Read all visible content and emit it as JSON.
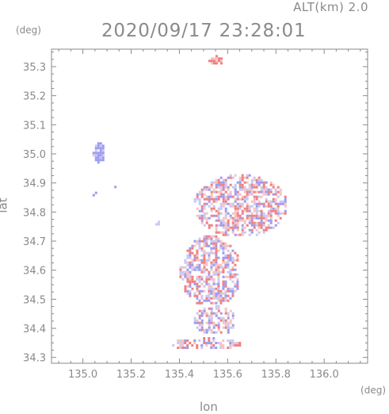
{
  "header": {
    "altitude_label": "ALT(km)  2.0",
    "timestamp": "2020/09/17 23:28:01"
  },
  "axes": {
    "x_label": "lon",
    "y_label": "lat",
    "x_unit": "(deg)",
    "y_unit": "(deg)"
  },
  "chart_data": {
    "type": "heatmap",
    "xlabel": "lon",
    "ylabel": "lat",
    "xlim": [
      134.87,
      136.18
    ],
    "ylim": [
      34.28,
      35.36
    ],
    "x_ticks": [
      "135.0",
      "135.2",
      "135.4",
      "135.6",
      "135.8",
      "136.0"
    ],
    "x_tick_values": [
      135.0,
      135.2,
      135.4,
      135.6,
      135.8,
      136.0
    ],
    "y_ticks": [
      "34.3",
      "34.4",
      "34.5",
      "34.6",
      "34.7",
      "34.8",
      "34.9",
      "35.0",
      "35.1",
      "35.2",
      "35.3"
    ],
    "y_tick_values": [
      34.3,
      34.4,
      34.5,
      34.6,
      34.7,
      34.8,
      34.9,
      35.0,
      35.1,
      35.2,
      35.3
    ],
    "colors": {
      "positive": "#f08080",
      "negative": "#9b9bf0",
      "light_negative": "#c8c8f4",
      "light_positive": "#f4c4c4"
    },
    "echo_regions": [
      {
        "name": "north-top-echo",
        "lon": [
          135.52,
          135.58
        ],
        "lat": [
          35.31,
          35.34
        ],
        "sign": "positive"
      },
      {
        "name": "northwest-echo-a",
        "lon": [
          135.04,
          135.09
        ],
        "lat": [
          34.97,
          35.04
        ],
        "sign": "negative"
      },
      {
        "name": "northwest-echo-b",
        "lon": [
          135.04,
          135.06
        ],
        "lat": [
          34.85,
          34.87
        ],
        "sign": "negative"
      },
      {
        "name": "northwest-echo-c",
        "lon": [
          135.12,
          135.14
        ],
        "lat": [
          34.88,
          34.89
        ],
        "sign": "negative"
      },
      {
        "name": "west-echo",
        "lon": [
          135.3,
          135.32
        ],
        "lat": [
          34.75,
          34.77
        ],
        "sign": "negative"
      },
      {
        "name": "central-north-echo",
        "lon": [
          135.46,
          135.84
        ],
        "lat": [
          34.72,
          34.93
        ],
        "sign": "mixed"
      },
      {
        "name": "central-echo",
        "lon": [
          135.4,
          135.65
        ],
        "lat": [
          34.48,
          34.72
        ],
        "sign": "mixed"
      },
      {
        "name": "south-echo",
        "lon": [
          135.46,
          135.63
        ],
        "lat": [
          34.38,
          34.48
        ],
        "sign": "mixed"
      },
      {
        "name": "southern-strip-echo",
        "lon": [
          135.36,
          135.66
        ],
        "lat": [
          34.33,
          34.37
        ],
        "sign": "mixed"
      }
    ]
  }
}
